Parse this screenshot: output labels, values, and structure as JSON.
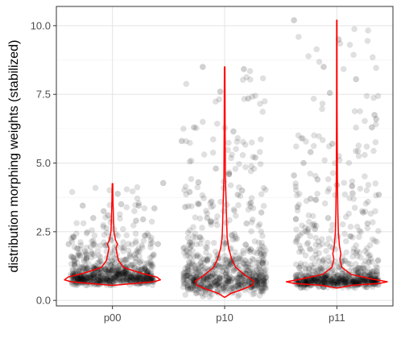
{
  "chart_data": {
    "type": "violin",
    "title": "",
    "xlabel": "",
    "ylabel": "distribution morphing weights (stabilized)",
    "categories": [
      "p00",
      "p10",
      "p11"
    ],
    "ylim": [
      -0.2,
      10.7
    ],
    "yticks": [
      0.0,
      2.5,
      5.0,
      7.5,
      10.0
    ],
    "ytick_labels": [
      "0.0",
      "2.5",
      "5.0",
      "7.5",
      "10.0"
    ],
    "grid": true,
    "legend": "none",
    "point_color": "#000000",
    "point_alpha": 0.12,
    "violin_color": "#ff0000",
    "groups": [
      {
        "name": "p00",
        "min": 0.55,
        "max": 4.25,
        "n_points": 700,
        "violin": [
          [
            0.55,
            0.02
          ],
          [
            0.62,
            0.45
          ],
          [
            0.68,
            0.82
          ],
          [
            0.75,
            0.95
          ],
          [
            0.85,
            0.88
          ],
          [
            1.0,
            0.55
          ],
          [
            1.2,
            0.22
          ],
          [
            1.45,
            0.12
          ],
          [
            1.7,
            0.09
          ],
          [
            1.9,
            0.07
          ],
          [
            2.05,
            0.1
          ],
          [
            2.2,
            0.06
          ],
          [
            2.5,
            0.03
          ],
          [
            3.0,
            0.02
          ],
          [
            3.6,
            0.01
          ],
          [
            4.25,
            0.005
          ]
        ],
        "outliers": [
          [
            -0.34,
            3.45
          ],
          [
            0.06,
            3.88
          ],
          [
            0.3,
            3.45
          ],
          [
            0.1,
            3.5
          ],
          [
            0.48,
            3.35
          ],
          [
            0.58,
            4.27
          ],
          [
            -0.1,
            3.25
          ],
          [
            -0.22,
            3.0
          ],
          [
            0.35,
            2.95
          ],
          [
            0.52,
            2.05
          ],
          [
            -0.5,
            2.05
          ],
          [
            0.27,
            2.9
          ],
          [
            -0.05,
            3.1
          ]
        ]
      },
      {
        "name": "p10",
        "min": 0.12,
        "max": 8.5,
        "n_points": 700,
        "violin": [
          [
            0.12,
            0.01
          ],
          [
            0.25,
            0.12
          ],
          [
            0.4,
            0.35
          ],
          [
            0.55,
            0.55
          ],
          [
            0.7,
            0.58
          ],
          [
            0.9,
            0.42
          ],
          [
            1.2,
            0.22
          ],
          [
            1.5,
            0.14
          ],
          [
            1.9,
            0.08
          ],
          [
            2.3,
            0.05
          ],
          [
            2.8,
            0.04
          ],
          [
            3.5,
            0.03
          ],
          [
            4.5,
            0.015
          ],
          [
            6.0,
            0.01
          ],
          [
            8.5,
            0.005
          ]
        ],
        "outliers": [
          [
            -0.25,
            8.5
          ],
          [
            0.22,
            8.42
          ],
          [
            -0.05,
            7.6
          ],
          [
            0.27,
            7.35
          ],
          [
            -0.35,
            6.3
          ],
          [
            0.1,
            6.15
          ],
          [
            -0.49,
            5.8
          ],
          [
            0.35,
            5.2
          ],
          [
            -0.1,
            4.8
          ],
          [
            0.05,
            4.6
          ],
          [
            -0.3,
            4.3
          ],
          [
            0.2,
            4.0
          ],
          [
            -0.4,
            3.95
          ],
          [
            0.15,
            3.85
          ],
          [
            -0.15,
            3.6
          ],
          [
            0.3,
            3.55
          ],
          [
            -0.45,
            3.4
          ],
          [
            0.42,
            3.2
          ],
          [
            -0.2,
            3.0
          ],
          [
            0.25,
            2.8
          ]
        ]
      },
      {
        "name": "p11",
        "min": 0.45,
        "max": 10.2,
        "n_points": 700,
        "violin": [
          [
            0.45,
            0.01
          ],
          [
            0.55,
            0.3
          ],
          [
            0.62,
            0.85
          ],
          [
            0.68,
            1.0
          ],
          [
            0.78,
            0.7
          ],
          [
            0.95,
            0.28
          ],
          [
            1.2,
            0.1
          ],
          [
            1.5,
            0.06
          ],
          [
            1.7,
            0.08
          ],
          [
            2.0,
            0.05
          ],
          [
            2.5,
            0.03
          ],
          [
            3.2,
            0.02
          ],
          [
            4.5,
            0.01
          ],
          [
            7.0,
            0.005
          ],
          [
            10.2,
            0.003
          ]
        ],
        "outliers": [
          [
            -0.49,
            10.2
          ],
          [
            0.02,
            9.5
          ],
          [
            -0.15,
            8.5
          ],
          [
            0.22,
            8.05
          ],
          [
            -0.08,
            7.55
          ],
          [
            0.43,
            6.75
          ],
          [
            0.45,
            6.6
          ],
          [
            0.4,
            6.3
          ],
          [
            -0.05,
            5.7
          ],
          [
            -0.3,
            5.4
          ],
          [
            -0.38,
            5.0
          ],
          [
            -0.22,
            4.4
          ],
          [
            -0.49,
            4.55
          ],
          [
            0.0,
            4.2
          ],
          [
            0.18,
            3.9
          ],
          [
            -0.3,
            3.7
          ],
          [
            0.48,
            3.85
          ],
          [
            -0.45,
            3.4
          ],
          [
            0.3,
            3.2
          ],
          [
            -0.1,
            3.0
          ],
          [
            0.35,
            2.8
          ],
          [
            -0.25,
            2.6
          ]
        ]
      }
    ]
  }
}
